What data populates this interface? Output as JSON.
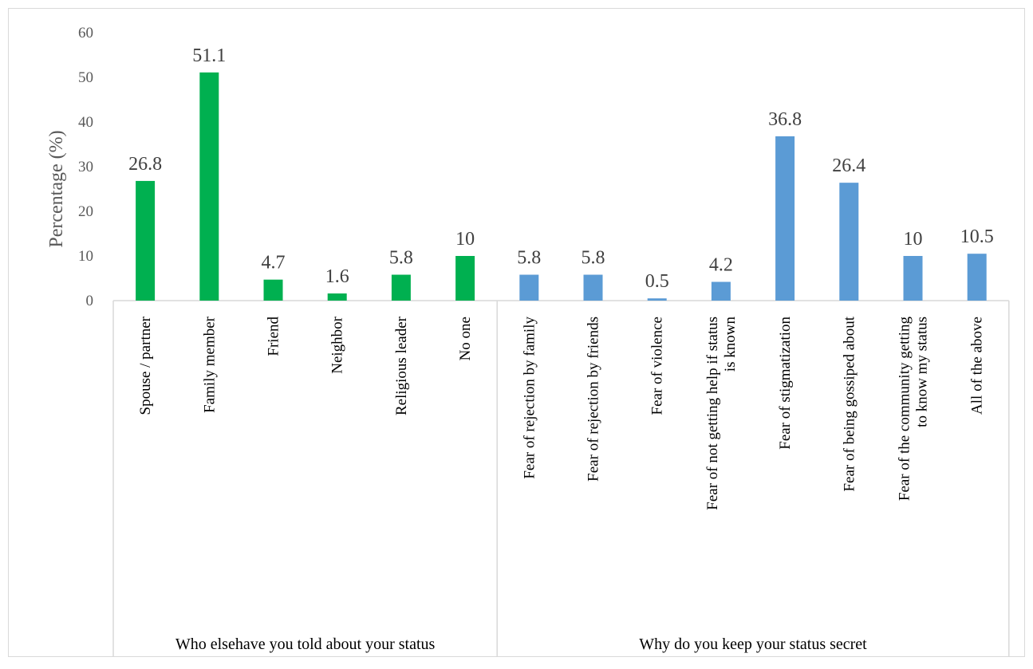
{
  "chart_data": {
    "type": "bar",
    "ylabel": "Percentage (%)",
    "ylim": [
      0,
      60
    ],
    "yticks": [
      0,
      10,
      20,
      30,
      40,
      50,
      60
    ],
    "grid": false,
    "groups": [
      {
        "label": "Who elsehave you told about your status",
        "color": "#00b050",
        "bars": [
          {
            "category": [
              "Spouse / partner"
            ],
            "value": 26.8,
            "label": "26.8"
          },
          {
            "category": [
              "Family member"
            ],
            "value": 51.1,
            "label": "51.1"
          },
          {
            "category": [
              "Friend"
            ],
            "value": 4.7,
            "label": "4.7"
          },
          {
            "category": [
              "Neighbor"
            ],
            "value": 1.6,
            "label": "1.6"
          },
          {
            "category": [
              "Religious leader"
            ],
            "value": 5.8,
            "label": "5.8"
          },
          {
            "category": [
              "No one"
            ],
            "value": 10,
            "label": "10"
          }
        ]
      },
      {
        "label": "Why do you keep your status secret",
        "color": "#5b9bd5",
        "bars": [
          {
            "category": [
              "Fear of rejection by family"
            ],
            "value": 5.8,
            "label": "5.8"
          },
          {
            "category": [
              "Fear of rejection by friends"
            ],
            "value": 5.8,
            "label": "5.8"
          },
          {
            "category": [
              "Fear of violence"
            ],
            "value": 0.5,
            "label": "0.5"
          },
          {
            "category": [
              "Fear of not getting help if status",
              "is known"
            ],
            "value": 4.2,
            "label": "4.2"
          },
          {
            "category": [
              "Fear of stigmatization"
            ],
            "value": 36.8,
            "label": "36.8"
          },
          {
            "category": [
              "Fear of being gossiped about"
            ],
            "value": 26.4,
            "label": "26.4"
          },
          {
            "category": [
              "Fear of the community getting",
              "to know my status"
            ],
            "value": 10,
            "label": "10"
          },
          {
            "category": [
              "All of the above"
            ],
            "value": 10.5,
            "label": "10.5"
          }
        ]
      }
    ]
  }
}
